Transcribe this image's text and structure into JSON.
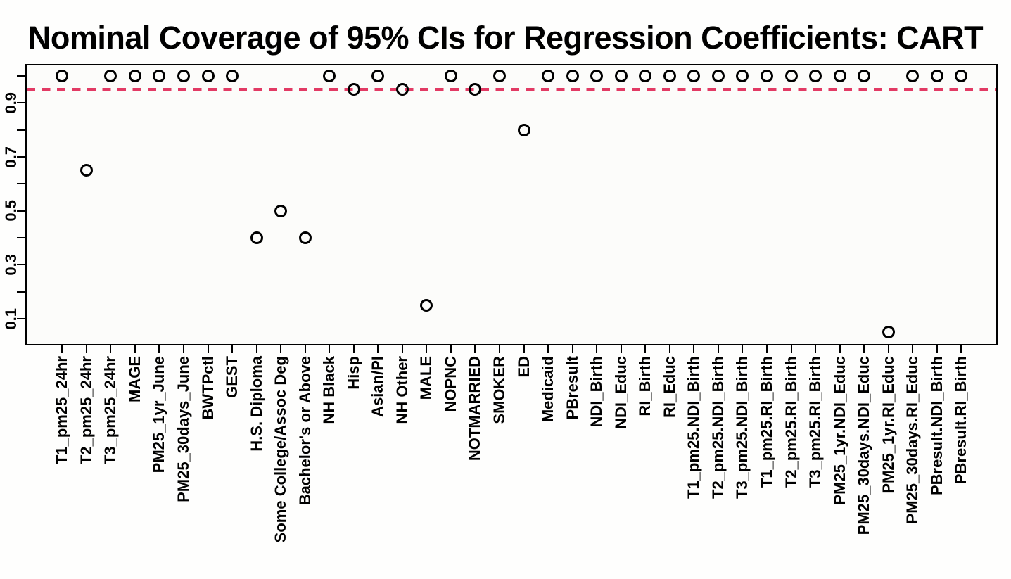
{
  "chart_data": {
    "type": "scatter",
    "title": "Nominal Coverage of 95% CIs for Regression Coefficients: CART",
    "xlabel": "",
    "ylabel": "",
    "marker": "open-circle",
    "marker_color": "#000000",
    "grid": false,
    "legend": null,
    "ylim": [
      0.02,
      1.04
    ],
    "categories": [
      "T1_pm25_24hr",
      "T2_pm25_24hr",
      "T3_pm25_24hr",
      "MAGE",
      "PM25_1yr_June",
      "PM25_30days_June",
      "BWTPctl",
      "GEST",
      "H.S. Diploma",
      "Some College/Assoc Deg",
      "Bachelor's or Above",
      "NH Black",
      "Hisp",
      "Asian/PI",
      "NH Other",
      "MALE",
      "NOPNC",
      "NOTMARRIED",
      "SMOKER",
      "ED",
      "Medicaid",
      "PBresult",
      "NDI_Birth",
      "NDI_Educ",
      "RI_Birth",
      "RI_Educ",
      "T1_pm25.NDI_Birth",
      "T2_pm25.NDI_Birth",
      "T3_pm25.NDI_Birth",
      "T1_pm25.RI_Birth",
      "T2_pm25.RI_Birth",
      "T3_pm25.RI_Birth",
      "PM25_1yr.NDI_Educ",
      "PM25_30days.NDI_Educ",
      "PM25_1yr.RI_Educ",
      "PM25_30days.RI_Educ",
      "PBresult.NDI_Birth",
      "PBresult.RI_Birth"
    ],
    "values": [
      1.0,
      0.65,
      1.0,
      1.0,
      1.0,
      1.0,
      1.0,
      1.0,
      0.4,
      0.5,
      0.4,
      1.0,
      0.95,
      1.0,
      0.95,
      0.15,
      1.0,
      0.95,
      1.0,
      0.8,
      1.0,
      1.0,
      1.0,
      1.0,
      1.0,
      1.0,
      1.0,
      1.0,
      1.0,
      1.0,
      1.0,
      1.0,
      1.0,
      1.0,
      0.05,
      1.0,
      1.0,
      1.0
    ],
    "reference_line": {
      "y": 0.95,
      "style": "dashed",
      "color": "#e23a64"
    },
    "y_axis": {
      "ticks": [
        0.1,
        0.2,
        0.3,
        0.4,
        0.5,
        0.6,
        0.7,
        0.8,
        0.9,
        1.0
      ],
      "labeled_ticks": [
        {
          "value": 0.9,
          "label": "0.9"
        },
        {
          "value": 0.7,
          "label": "0.7"
        },
        {
          "value": 0.5,
          "label": "0.5"
        },
        {
          "value": 0.3,
          "label": "0.3"
        },
        {
          "value": 0.1,
          "label": "0.1"
        }
      ]
    }
  }
}
